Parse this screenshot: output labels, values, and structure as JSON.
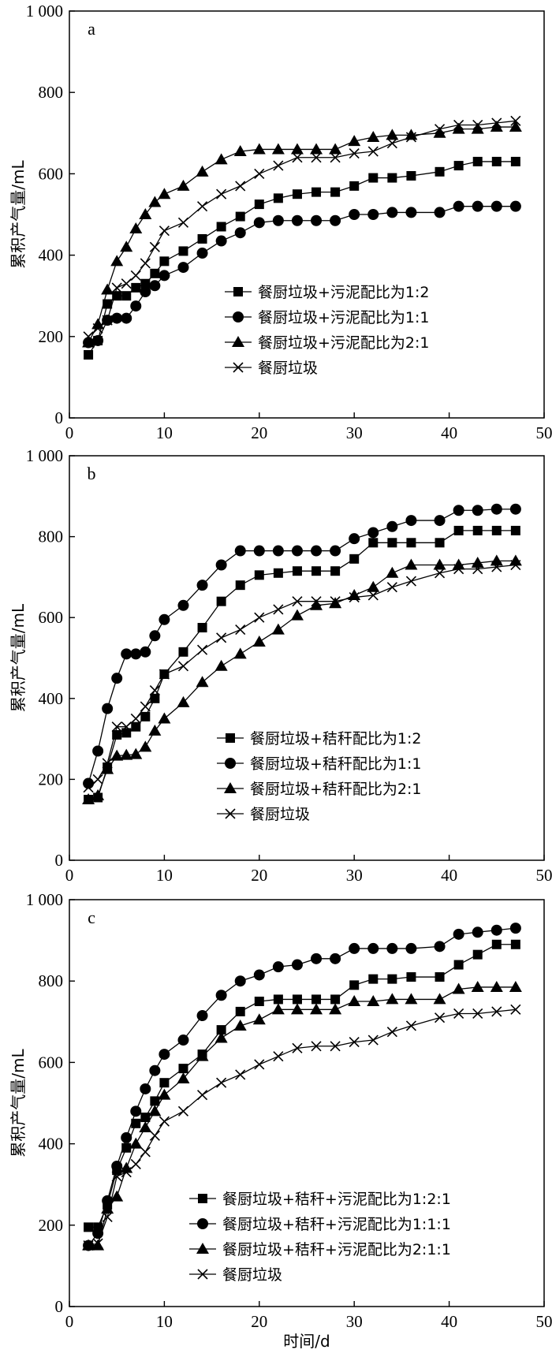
{
  "figure": {
    "xlabel": "时间/d"
  },
  "chart_data": [
    {
      "type": "line",
      "panel": "a",
      "ylabel": "累积产气量/mL",
      "xlim": [
        0,
        50
      ],
      "ylim": [
        0,
        1000
      ],
      "x_ticks": [
        "0",
        "10",
        "20",
        "30",
        "40",
        "50"
      ],
      "y_ticks": [
        "0",
        "200",
        "400",
        "600",
        "800",
        "1 000"
      ],
      "legend_position": "center-right",
      "series": [
        {
          "name": "餐厨垃圾+污泥配比为1:2",
          "marker": "square",
          "x": [
            2,
            3,
            4,
            5,
            6,
            7,
            8,
            9,
            10,
            12,
            14,
            16,
            18,
            20,
            22,
            24,
            26,
            28,
            30,
            32,
            34,
            36,
            39,
            41,
            43,
            45,
            47
          ],
          "y": [
            155,
            190,
            280,
            300,
            300,
            320,
            330,
            355,
            385,
            410,
            440,
            470,
            495,
            525,
            540,
            550,
            555,
            555,
            570,
            590,
            590,
            595,
            605,
            620,
            630,
            630,
            630
          ]
        },
        {
          "name": "餐厨垃圾+污泥配比为1:1",
          "marker": "circle",
          "x": [
            2,
            3,
            4,
            5,
            6,
            7,
            8,
            9,
            10,
            12,
            14,
            16,
            18,
            20,
            22,
            24,
            26,
            28,
            30,
            32,
            34,
            36,
            39,
            41,
            43,
            45,
            47
          ],
          "y": [
            185,
            190,
            240,
            245,
            245,
            275,
            310,
            325,
            350,
            370,
            405,
            435,
            455,
            480,
            485,
            485,
            485,
            485,
            500,
            500,
            505,
            505,
            505,
            520,
            520,
            520,
            520
          ]
        },
        {
          "name": "餐厨垃圾+污泥配比为2:1",
          "marker": "triangle",
          "x": [
            2,
            3,
            4,
            5,
            6,
            7,
            8,
            9,
            10,
            12,
            14,
            16,
            18,
            20,
            22,
            24,
            26,
            28,
            30,
            32,
            34,
            36,
            39,
            41,
            43,
            45,
            47
          ],
          "y": [
            185,
            230,
            315,
            385,
            420,
            465,
            500,
            530,
            550,
            570,
            605,
            635,
            655,
            660,
            660,
            660,
            660,
            660,
            680,
            690,
            695,
            695,
            700,
            710,
            710,
            715,
            715
          ]
        },
        {
          "name": "餐厨垃圾",
          "marker": "x",
          "x": [
            2,
            3,
            4,
            5,
            6,
            7,
            8,
            9,
            10,
            12,
            14,
            16,
            18,
            20,
            22,
            24,
            26,
            28,
            30,
            32,
            34,
            36,
            39,
            41,
            43,
            45,
            47
          ],
          "y": [
            200,
            220,
            240,
            320,
            330,
            350,
            380,
            420,
            460,
            480,
            520,
            550,
            570,
            600,
            620,
            640,
            640,
            640,
            650,
            655,
            675,
            690,
            710,
            720,
            720,
            725,
            730
          ]
        }
      ]
    },
    {
      "type": "line",
      "panel": "b",
      "ylabel": "累积产气量/mL",
      "xlim": [
        0,
        50
      ],
      "ylim": [
        0,
        1000
      ],
      "x_ticks": [
        "0",
        "10",
        "20",
        "30",
        "40",
        "50"
      ],
      "y_ticks": [
        "0",
        "200",
        "400",
        "600",
        "800",
        "1 000"
      ],
      "legend_position": "lower-right",
      "series": [
        {
          "name": "餐厨垃圾+秸秆配比为1:2",
          "marker": "square",
          "x": [
            2,
            3,
            4,
            5,
            6,
            7,
            8,
            9,
            10,
            12,
            14,
            16,
            18,
            20,
            22,
            24,
            26,
            28,
            30,
            32,
            34,
            36,
            39,
            41,
            43,
            45,
            47
          ],
          "y": [
            150,
            155,
            230,
            310,
            315,
            330,
            355,
            400,
            460,
            515,
            575,
            640,
            680,
            705,
            710,
            715,
            715,
            715,
            745,
            785,
            785,
            785,
            785,
            815,
            815,
            815,
            815
          ]
        },
        {
          "name": "餐厨垃圾+秸秆配比为1:1",
          "marker": "circle",
          "x": [
            2,
            3,
            4,
            5,
            6,
            7,
            8,
            9,
            10,
            12,
            14,
            16,
            18,
            20,
            22,
            24,
            26,
            28,
            30,
            32,
            34,
            36,
            39,
            41,
            43,
            45,
            47
          ],
          "y": [
            190,
            270,
            375,
            450,
            510,
            510,
            515,
            555,
            595,
            630,
            680,
            730,
            765,
            765,
            765,
            765,
            765,
            765,
            795,
            810,
            825,
            840,
            840,
            865,
            865,
            868,
            868
          ]
        },
        {
          "name": "餐厨垃圾+秸秆配比为2:1",
          "marker": "triangle",
          "x": [
            2,
            3,
            4,
            5,
            6,
            7,
            8,
            9,
            10,
            12,
            14,
            16,
            18,
            20,
            22,
            24,
            26,
            28,
            30,
            32,
            34,
            36,
            39,
            41,
            43,
            45,
            47
          ],
          "y": [
            150,
            160,
            225,
            258,
            260,
            262,
            280,
            320,
            350,
            390,
            440,
            480,
            510,
            540,
            570,
            605,
            630,
            635,
            655,
            675,
            710,
            730,
            730,
            730,
            735,
            740,
            740
          ]
        },
        {
          "name": "餐厨垃圾",
          "marker": "x",
          "x": [
            2,
            3,
            4,
            5,
            6,
            7,
            8,
            9,
            10,
            12,
            14,
            16,
            18,
            20,
            22,
            24,
            26,
            28,
            30,
            32,
            34,
            36,
            39,
            41,
            43,
            45,
            47
          ],
          "y": [
            180,
            200,
            240,
            330,
            330,
            350,
            380,
            420,
            460,
            480,
            520,
            550,
            570,
            600,
            620,
            640,
            640,
            640,
            650,
            655,
            675,
            690,
            710,
            720,
            720,
            725,
            730
          ]
        }
      ]
    },
    {
      "type": "line",
      "panel": "c",
      "ylabel": "累积产气量/mL",
      "xlim": [
        0,
        50
      ],
      "ylim": [
        0,
        1000
      ],
      "x_ticks": [
        "0",
        "10",
        "20",
        "30",
        "40",
        "50"
      ],
      "y_ticks": [
        "0",
        "200",
        "400",
        "600",
        "800",
        "1 000"
      ],
      "legend_position": "lower-right",
      "series": [
        {
          "name": "餐厨垃圾+秸秆+污泥配比为1:2:1",
          "marker": "square",
          "x": [
            2,
            3,
            4,
            5,
            6,
            7,
            8,
            9,
            10,
            12,
            14,
            16,
            18,
            20,
            22,
            24,
            26,
            28,
            30,
            32,
            34,
            36,
            39,
            41,
            43,
            45,
            47
          ],
          "y": [
            195,
            195,
            250,
            335,
            390,
            450,
            465,
            505,
            550,
            585,
            620,
            680,
            725,
            750,
            755,
            755,
            755,
            755,
            790,
            805,
            805,
            810,
            810,
            840,
            865,
            890,
            890
          ]
        },
        {
          "name": "餐厨垃圾+秸秆+污泥配比为1:1:1",
          "marker": "circle",
          "x": [
            2,
            3,
            4,
            5,
            6,
            7,
            8,
            9,
            10,
            12,
            14,
            16,
            18,
            20,
            22,
            24,
            26,
            28,
            30,
            32,
            34,
            36,
            39,
            41,
            43,
            45,
            47
          ],
          "y": [
            150,
            180,
            260,
            345,
            415,
            480,
            535,
            580,
            620,
            655,
            715,
            765,
            800,
            815,
            835,
            840,
            855,
            855,
            880,
            880,
            880,
            880,
            885,
            915,
            920,
            925,
            930
          ]
        },
        {
          "name": "餐厨垃圾+秸秆+污泥配比为2:1:1",
          "marker": "triangle",
          "x": [
            2,
            3,
            4,
            5,
            6,
            7,
            8,
            9,
            10,
            12,
            14,
            16,
            18,
            20,
            22,
            24,
            26,
            28,
            30,
            32,
            34,
            36,
            39,
            41,
            43,
            45,
            47
          ],
          "y": [
            150,
            150,
            240,
            270,
            340,
            400,
            440,
            480,
            520,
            560,
            615,
            660,
            690,
            705,
            730,
            730,
            730,
            730,
            750,
            750,
            755,
            755,
            755,
            780,
            785,
            785,
            785
          ]
        },
        {
          "name": "餐厨垃圾",
          "marker": "x",
          "x": [
            2,
            3,
            4,
            5,
            6,
            7,
            8,
            9,
            10,
            12,
            14,
            16,
            18,
            20,
            22,
            24,
            26,
            28,
            30,
            32,
            34,
            36,
            39,
            41,
            43,
            45,
            47
          ],
          "y": [
            150,
            155,
            220,
            320,
            330,
            350,
            380,
            420,
            455,
            480,
            520,
            550,
            570,
            595,
            615,
            635,
            640,
            640,
            650,
            655,
            675,
            690,
            710,
            720,
            720,
            725,
            730
          ]
        }
      ]
    }
  ]
}
